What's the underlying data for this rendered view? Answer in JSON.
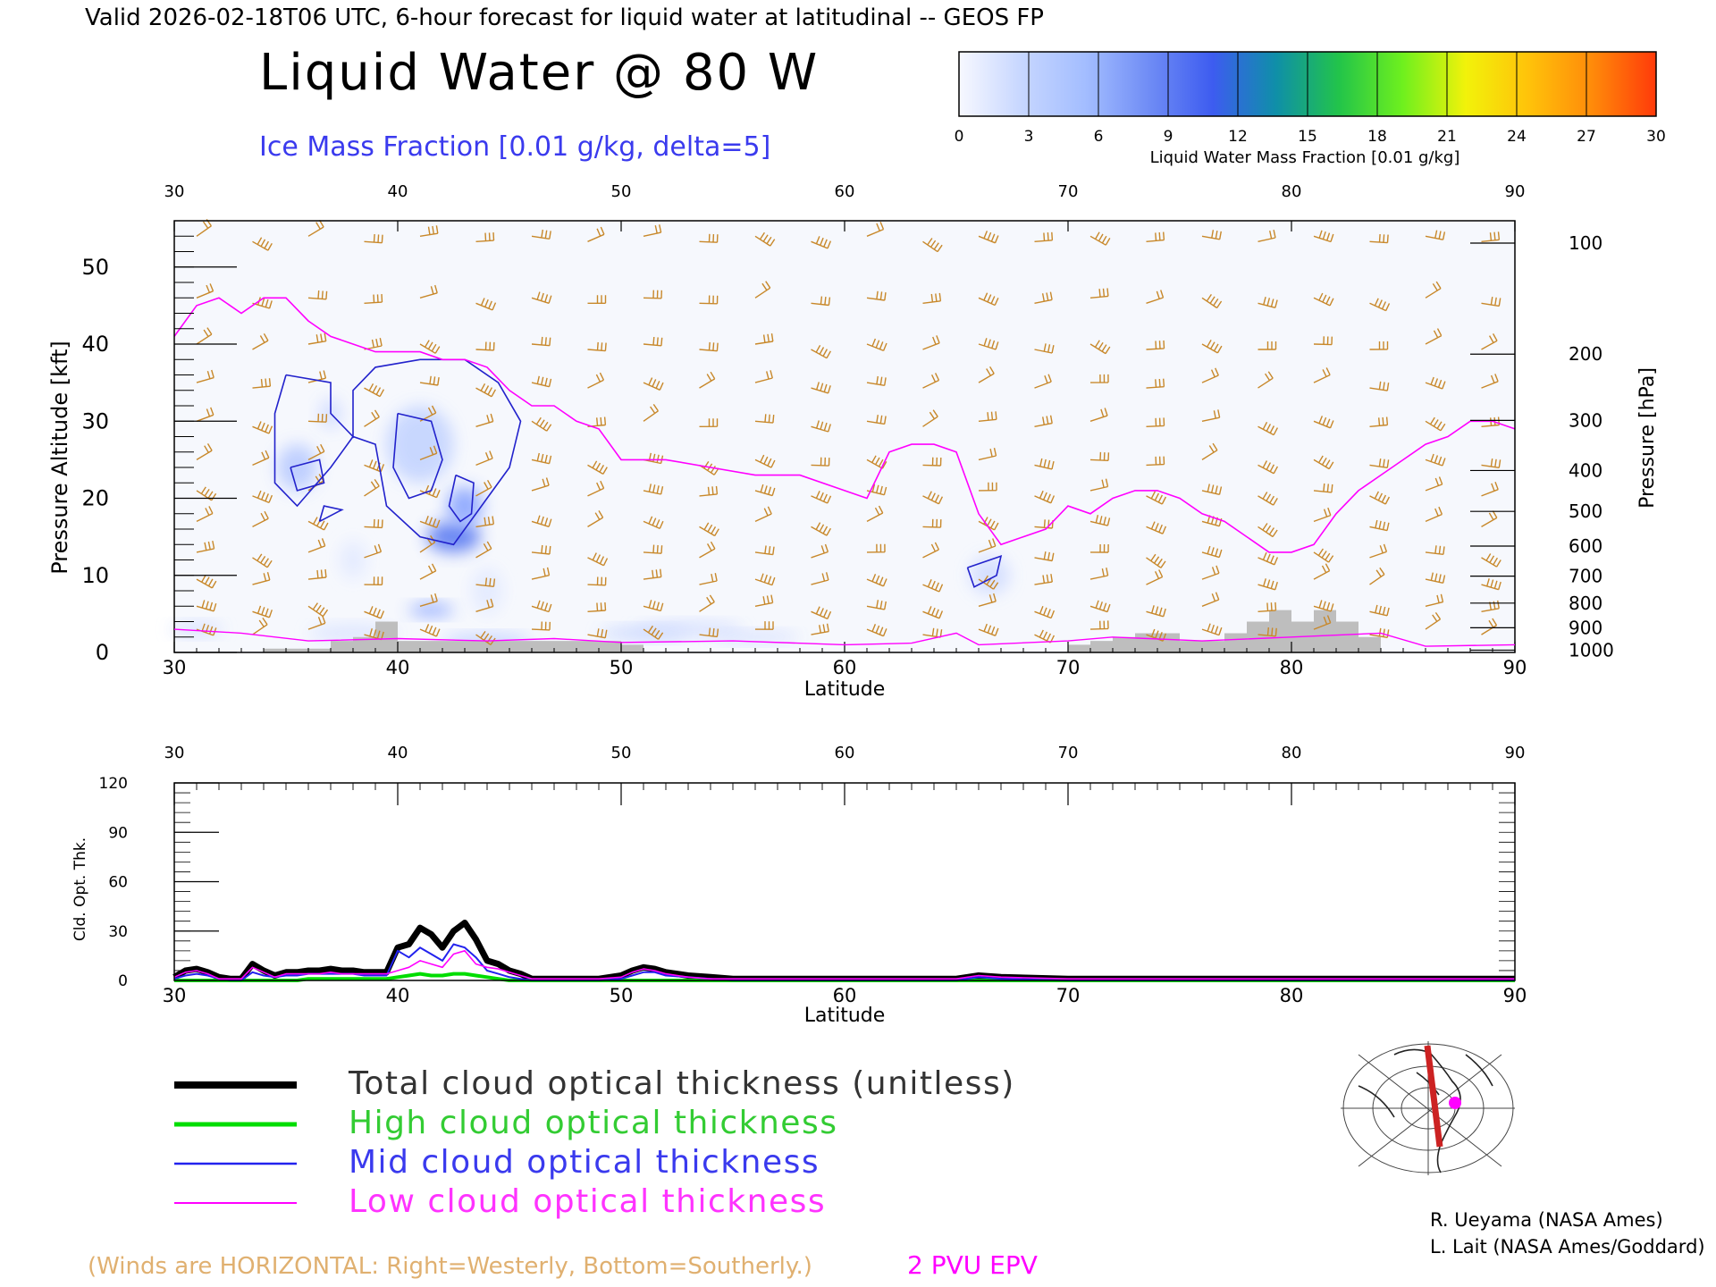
{
  "header": {
    "valid_line": "Valid 2026-02-18T06 UTC, 6-hour forecast for liquid water at latitudinal -- GEOS FP",
    "title": "Liquid Water @ 80 W",
    "subtitle": "Ice Mass Fraction [0.01 g/kg, delta=5]"
  },
  "colorbar": {
    "ticks": [
      "0",
      "3",
      "6",
      "9",
      "12",
      "15",
      "18",
      "21",
      "24",
      "27",
      "30"
    ],
    "label": "Liquid Water Mass Fraction [0.01 g/kg]",
    "colors": [
      "#f7f8ff",
      "#c6d6ff",
      "#a3bdff",
      "#6f8cf5",
      "#3d5cf0",
      "#0f8fa8",
      "#22c44a",
      "#6ef01e",
      "#f2f20a",
      "#ffc20a",
      "#ff8a0a",
      "#ff3a0a"
    ]
  },
  "colors": {
    "wind_barb": "#c8882a",
    "epv": "#ff00ff",
    "ice_contour": "#2222cc",
    "terrain": "#bebebe",
    "total": "#000000",
    "high": "#00dd00",
    "mid": "#2222ee",
    "low": "#ff00ff"
  },
  "chart_data": [
    {
      "type": "contour",
      "name": "upper-cross-section",
      "xlabel": "Latitude",
      "ylabel": "Pressure Altitude [kft]",
      "y2label": "Pressure [hPa]",
      "xlim": [
        30,
        90
      ],
      "ylim": [
        0,
        56
      ],
      "xticks": [
        "30",
        "40",
        "50",
        "60",
        "70",
        "80",
        "90"
      ],
      "yticks": [
        "0",
        "10",
        "20",
        "30",
        "40",
        "50"
      ],
      "pressure_ticks": [
        {
          "label": "100",
          "kft": 53.1
        },
        {
          "label": "200",
          "kft": 38.7
        },
        {
          "label": "300",
          "kft": 30.1
        },
        {
          "label": "400",
          "kft": 23.6
        },
        {
          "label": "500",
          "kft": 18.3
        },
        {
          "label": "600",
          "kft": 13.8
        },
        {
          "label": "700",
          "kft": 9.9
        },
        {
          "label": "800",
          "kft": 6.4
        },
        {
          "label": "900",
          "kft": 3.2
        },
        {
          "label": "1000",
          "kft": 0.3
        }
      ],
      "epv_2pvu_line": {
        "lat": [
          30,
          31,
          32,
          33,
          34,
          35,
          36,
          37,
          38,
          39,
          40,
          41,
          42,
          43,
          44,
          45,
          46,
          47,
          48,
          49,
          50,
          52,
          54,
          56,
          58,
          60,
          61,
          62,
          63,
          64,
          65,
          66,
          67,
          68,
          69,
          70,
          71,
          72,
          73,
          74,
          75,
          76,
          77,
          78,
          79,
          80,
          81,
          82,
          83,
          84,
          85,
          86,
          87,
          88,
          89,
          90
        ],
        "kft": [
          41,
          45,
          46,
          44,
          46,
          46,
          43,
          41,
          40,
          39,
          39,
          39,
          38,
          38,
          37,
          34,
          32,
          32,
          30,
          29,
          25,
          25,
          24,
          23,
          23,
          21,
          20,
          26,
          27,
          27,
          26,
          18,
          14,
          15,
          16,
          19,
          18,
          20,
          21,
          21,
          20,
          18,
          17,
          15,
          13,
          13,
          14,
          18,
          21,
          23,
          25,
          27,
          28,
          30,
          30,
          29
        ]
      },
      "ice_contours": [
        {
          "label": "5",
          "points": [
            [
              35,
              36
            ],
            [
              37,
              35
            ],
            [
              37,
              31
            ],
            [
              38,
              28
            ],
            [
              38,
              34
            ],
            [
              39,
              37
            ],
            [
              41,
              38
            ],
            [
              43,
              38
            ],
            [
              44.5,
              35
            ],
            [
              45.5,
              30
            ],
            [
              45,
              24
            ],
            [
              44,
              20
            ],
            [
              42.5,
              14
            ],
            [
              41,
              15
            ],
            [
              39.5,
              19
            ],
            [
              39,
              27
            ],
            [
              38,
              28
            ],
            [
              37,
              24
            ],
            [
              35.5,
              19
            ],
            [
              34.5,
              22
            ],
            [
              34.5,
              31
            ],
            [
              35,
              36
            ]
          ]
        },
        {
          "label": "10",
          "points": [
            [
              40,
              31
            ],
            [
              41.5,
              30
            ],
            [
              42,
              25
            ],
            [
              41.5,
              21
            ],
            [
              40.5,
              20
            ],
            [
              39.8,
              24
            ],
            [
              40,
              31
            ]
          ]
        },
        {
          "label": "15",
          "points": [
            [
              42.6,
              23
            ],
            [
              43.4,
              22
            ],
            [
              43.3,
              18
            ],
            [
              42.8,
              17
            ],
            [
              42.3,
              19
            ],
            [
              42.6,
              23
            ]
          ]
        },
        {
          "label": "5",
          "points": [
            [
              35.2,
              24
            ],
            [
              36.5,
              25
            ],
            [
              36.7,
              22
            ],
            [
              35.5,
              21
            ],
            [
              35.2,
              24
            ]
          ]
        },
        {
          "label": "5",
          "points": [
            [
              36.5,
              17
            ],
            [
              37.5,
              18.5
            ],
            [
              36.7,
              19
            ],
            [
              36.5,
              17
            ]
          ]
        },
        {
          "label": "5",
          "points": [
            [
              65.5,
              11
            ],
            [
              67,
              12.5
            ],
            [
              66.8,
              10
            ],
            [
              65.8,
              8.5
            ],
            [
              65.5,
              11
            ]
          ]
        }
      ],
      "wind_barbs": true,
      "terrain_kft": {
        "lat": [
          30,
          34,
          37,
          38,
          39,
          40,
          41,
          42,
          43,
          44,
          45,
          46,
          47,
          48,
          49,
          50,
          51,
          60,
          70,
          71,
          72,
          73,
          74,
          75,
          76,
          77,
          78,
          79,
          80,
          81,
          82,
          83,
          84,
          90
        ],
        "kft": [
          0,
          0.5,
          1.5,
          2,
          4,
          1.5,
          1.5,
          1.5,
          1.5,
          1.5,
          1.5,
          1.5,
          1.5,
          1.5,
          1.5,
          1,
          0,
          0,
          1,
          1.5,
          2,
          2.5,
          2.5,
          1.5,
          1.5,
          2.5,
          4,
          5.5,
          4,
          5.5,
          4,
          2,
          0,
          0
        ]
      }
    },
    {
      "type": "line",
      "name": "cloud-optical-thickness",
      "xlabel": "Latitude",
      "ylabel": "Cld. Opt. Thk.",
      "xlim": [
        30,
        90
      ],
      "ylim": [
        0,
        120
      ],
      "xticks": [
        "30",
        "40",
        "50",
        "60",
        "70",
        "80",
        "90"
      ],
      "yticks": [
        "0",
        "30",
        "60",
        "90",
        "120"
      ],
      "x": [
        30,
        30.5,
        31,
        31.5,
        32,
        32.5,
        33,
        33.5,
        34,
        34.5,
        35,
        35.5,
        36,
        36.5,
        37,
        37.5,
        38,
        38.5,
        39,
        39.5,
        40,
        40.5,
        41,
        41.5,
        42,
        42.5,
        43,
        43.5,
        44,
        44.5,
        45,
        45.5,
        46,
        47,
        48,
        49,
        50,
        50.5,
        51,
        51.5,
        52,
        53,
        54,
        55,
        56,
        57,
        60,
        63,
        65,
        66,
        67,
        70,
        75,
        80,
        85,
        90
      ],
      "series": [
        {
          "name": "Total cloud optical thickness (unitless)",
          "values": [
            2,
            6,
            7,
            5,
            2,
            1,
            1,
            10,
            6,
            3,
            5,
            5,
            6,
            6,
            7,
            6,
            6,
            5,
            5,
            5,
            20,
            22,
            32,
            28,
            20,
            30,
            35,
            25,
            12,
            10,
            6,
            4,
            1,
            1,
            1,
            1,
            3,
            6,
            8,
            7,
            5,
            3,
            2,
            1,
            1,
            1,
            1,
            1,
            1,
            3,
            2,
            1,
            1,
            1,
            1,
            1
          ]
        },
        {
          "name": "High cloud optical thickness",
          "values": [
            0,
            0,
            0,
            0,
            0,
            0,
            0,
            0,
            0,
            0,
            0,
            0,
            1,
            1,
            1,
            1,
            1,
            1,
            1,
            1,
            2,
            3,
            4,
            3,
            3,
            4,
            4,
            3,
            2,
            1,
            0,
            0,
            0,
            0,
            0,
            0,
            0,
            0,
            0,
            0,
            0,
            0,
            0,
            0,
            0,
            0,
            0,
            0,
            0,
            0,
            0,
            0,
            0,
            0,
            0,
            0
          ]
        },
        {
          "name": "Mid cloud optical thickness",
          "values": [
            1,
            3,
            4,
            3,
            1,
            0,
            0,
            5,
            3,
            2,
            3,
            3,
            4,
            4,
            4,
            4,
            4,
            3,
            3,
            3,
            18,
            14,
            20,
            16,
            12,
            22,
            20,
            14,
            6,
            4,
            2,
            1,
            0,
            0,
            0,
            0,
            1,
            3,
            5,
            5,
            3,
            2,
            1,
            0,
            0,
            0,
            0,
            0,
            0,
            2,
            1,
            0,
            0,
            0,
            0,
            0
          ]
        },
        {
          "name": "Low cloud optical thickness",
          "values": [
            2,
            5,
            6,
            4,
            1,
            1,
            1,
            8,
            5,
            2,
            4,
            4,
            4,
            4,
            5,
            4,
            4,
            4,
            4,
            4,
            6,
            8,
            12,
            10,
            8,
            16,
            18,
            10,
            8,
            7,
            5,
            3,
            1,
            1,
            1,
            1,
            2,
            5,
            7,
            6,
            4,
            2,
            1,
            1,
            1,
            1,
            1,
            1,
            1,
            3,
            2,
            1,
            1,
            1,
            1,
            1
          ]
        }
      ]
    }
  ],
  "legend": {
    "total": "Total cloud optical thickness (unitless)",
    "high": "High cloud optical thickness",
    "mid": "Mid cloud optical thickness",
    "low": "Low cloud optical thickness"
  },
  "footer": {
    "winds_note": "(Winds are HORIZONTAL: Right=Westerly, Bottom=Southerly.)",
    "epv_label": "2 PVU EPV",
    "credit1": "R. Ueyama (NASA Ames)",
    "credit2": "L. Lait (NASA Ames/Goddard)"
  }
}
